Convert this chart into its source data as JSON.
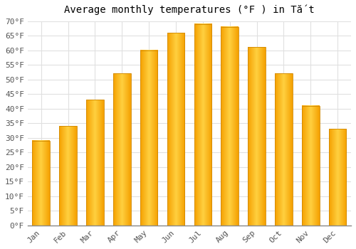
{
  "title": "Average monthly temperatures (°F ) in Tắt",
  "months": [
    "Jan",
    "Feb",
    "Mar",
    "Apr",
    "May",
    "Jun",
    "Jul",
    "Aug",
    "Sep",
    "Oct",
    "Nov",
    "Dec"
  ],
  "values": [
    29,
    34,
    43,
    52,
    60,
    66,
    69,
    68,
    61,
    52,
    41,
    33
  ],
  "bar_color_center": "#FFD040",
  "bar_color_edge": "#F5A000",
  "ylim": [
    0,
    70
  ],
  "yticks": [
    0,
    5,
    10,
    15,
    20,
    25,
    30,
    35,
    40,
    45,
    50,
    55,
    60,
    65,
    70
  ],
  "ytick_labels": [
    "0°F",
    "5°F",
    "10°F",
    "15°F",
    "20°F",
    "25°F",
    "30°F",
    "35°F",
    "40°F",
    "45°F",
    "50°F",
    "55°F",
    "60°F",
    "65°F",
    "70°F"
  ],
  "background_color": "#ffffff",
  "grid_color": "#e0e0e0",
  "title_fontsize": 10,
  "tick_fontsize": 8,
  "bar_width": 0.65
}
